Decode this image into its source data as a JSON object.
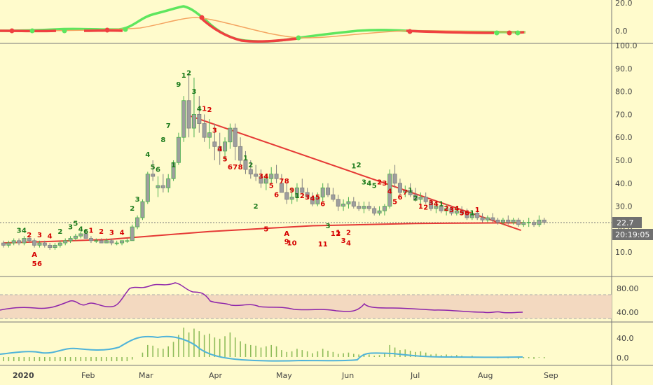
{
  "colors": {
    "background": "#fffbcc",
    "candle_up": "#4caf50",
    "candle_down": "#808080",
    "candle_body": "#9e9e9e",
    "trendline": "#e53935",
    "ma_line": "#e53935",
    "count_green": "#1b7a1b",
    "count_red": "#d50000",
    "rsi_line": "#8e24aa",
    "rsi_band": "#f3d9c0",
    "macd_line": "#4fb3d9",
    "hist": "#8fbc5a",
    "top_green": "#5ee65e",
    "top_red": "#ef4040",
    "top_orange": "#f4a460",
    "label_box": "#707070"
  },
  "price_label": {
    "value": "22.7",
    "timer": "20:19:05"
  },
  "x_labels": [
    "2020",
    "Feb",
    "Mar",
    "Apr",
    "May",
    "Jun",
    "Jul",
    "Aug",
    "Sep"
  ],
  "top_panel": {
    "ticks": [
      "20.0",
      "0.0"
    ]
  },
  "rsi_panel": {
    "ticks": [
      "80.00",
      "40.00"
    ],
    "band": [
      30,
      70
    ]
  },
  "macd_panel": {
    "ticks": [
      "40.0",
      "0.0"
    ]
  },
  "chart_data": {
    "type": "candlestick",
    "y_ticks": [
      "10.0",
      "20.0",
      "30.0",
      "40.0",
      "50.0",
      "60.0",
      "70.0",
      "80.0",
      "90.0",
      "100.0"
    ],
    "ylim": [
      0,
      100
    ],
    "last_price": 22.7,
    "candles": [
      [
        14,
        15,
        12,
        13
      ],
      [
        13,
        15,
        12,
        14
      ],
      [
        14,
        16,
        13,
        15
      ],
      [
        15,
        16,
        13,
        14
      ],
      [
        14,
        17,
        13,
        16
      ],
      [
        16,
        17,
        14,
        15
      ],
      [
        15,
        16,
        12,
        13
      ],
      [
        13,
        15,
        12,
        14
      ],
      [
        14,
        15,
        12,
        13
      ],
      [
        13,
        14,
        11,
        12
      ],
      [
        12,
        14,
        11,
        13
      ],
      [
        13,
        15,
        12,
        14
      ],
      [
        14,
        16,
        13,
        15
      ],
      [
        15,
        17,
        14,
        16
      ],
      [
        16,
        18,
        15,
        17
      ],
      [
        17,
        19,
        16,
        18
      ],
      [
        18,
        20,
        16,
        16
      ],
      [
        16,
        17,
        14,
        15
      ],
      [
        15,
        16,
        14,
        15
      ],
      [
        15,
        16,
        14,
        14
      ],
      [
        14,
        16,
        14,
        15
      ],
      [
        15,
        16,
        13,
        14
      ],
      [
        14,
        15,
        13,
        14
      ],
      [
        14,
        15,
        13,
        15
      ],
      [
        15,
        16,
        14,
        15
      ],
      [
        15,
        22,
        15,
        21
      ],
      [
        21,
        26,
        20,
        25
      ],
      [
        25,
        33,
        24,
        32
      ],
      [
        32,
        45,
        31,
        44
      ],
      [
        44,
        50,
        41,
        43
      ],
      [
        38,
        43,
        34,
        39
      ],
      [
        39,
        44,
        36,
        38
      ],
      [
        38,
        44,
        36,
        42
      ],
      [
        42,
        50,
        41,
        49
      ],
      [
        49,
        62,
        48,
        60
      ],
      [
        60,
        78,
        58,
        76
      ],
      [
        76,
        88,
        60,
        64
      ],
      [
        64,
        86,
        60,
        70
      ],
      [
        70,
        78,
        62,
        66
      ],
      [
        66,
        70,
        58,
        60
      ],
      [
        60,
        68,
        55,
        62
      ],
      [
        58,
        66,
        50,
        56
      ],
      [
        56,
        62,
        48,
        54
      ],
      [
        54,
        60,
        50,
        58
      ],
      [
        58,
        66,
        55,
        64
      ],
      [
        64,
        66,
        50,
        56
      ],
      [
        56,
        60,
        48,
        50
      ],
      [
        50,
        54,
        44,
        46
      ],
      [
        46,
        50,
        42,
        44
      ],
      [
        44,
        48,
        41,
        43
      ],
      [
        43,
        46,
        38,
        40
      ],
      [
        40,
        44,
        37,
        42
      ],
      [
        42,
        47,
        40,
        44
      ],
      [
        44,
        48,
        40,
        42
      ],
      [
        40,
        44,
        36,
        36
      ],
      [
        36,
        40,
        31,
        33
      ],
      [
        33,
        38,
        31,
        34
      ],
      [
        34,
        40,
        32,
        38
      ],
      [
        38,
        42,
        35,
        36
      ],
      [
        36,
        38,
        33,
        34
      ],
      [
        34,
        36,
        30,
        31
      ],
      [
        31,
        36,
        30,
        34
      ],
      [
        34,
        40,
        32,
        38
      ],
      [
        38,
        40,
        34,
        35
      ],
      [
        35,
        38,
        32,
        33
      ],
      [
        33,
        35,
        28,
        30
      ],
      [
        30,
        33,
        28,
        31
      ],
      [
        31,
        34,
        29,
        32
      ],
      [
        32,
        34,
        29,
        30
      ],
      [
        30,
        32,
        28,
        29
      ],
      [
        29,
        32,
        27,
        30
      ],
      [
        30,
        32,
        28,
        29
      ],
      [
        29,
        30,
        26,
        27
      ],
      [
        27,
        30,
        26,
        28
      ],
      [
        28,
        31,
        26,
        30
      ],
      [
        30,
        46,
        29,
        44
      ],
      [
        44,
        48,
        38,
        40
      ],
      [
        40,
        42,
        35,
        36
      ],
      [
        36,
        39,
        34,
        37
      ],
      [
        37,
        40,
        34,
        35
      ],
      [
        35,
        38,
        32,
        33
      ],
      [
        33,
        36,
        31,
        34
      ],
      [
        34,
        36,
        31,
        32
      ],
      [
        32,
        33,
        28,
        29
      ],
      [
        29,
        32,
        27,
        30
      ],
      [
        30,
        31,
        27,
        28
      ],
      [
        28,
        31,
        26,
        29
      ],
      [
        29,
        30,
        26,
        27
      ],
      [
        27,
        30,
        26,
        28
      ],
      [
        28,
        30,
        26,
        27
      ],
      [
        27,
        29,
        24,
        25
      ],
      [
        25,
        28,
        24,
        27
      ],
      [
        27,
        28,
        24,
        25
      ],
      [
        25,
        27,
        23,
        24
      ],
      [
        24,
        26,
        23,
        25
      ],
      [
        25,
        27,
        23,
        24
      ],
      [
        24,
        25,
        22,
        23
      ],
      [
        23,
        25,
        22,
        24
      ],
      [
        24,
        26,
        22,
        23
      ],
      [
        23,
        25,
        22,
        24
      ],
      [
        24,
        25,
        21,
        22
      ],
      [
        22,
        24,
        21,
        23
      ],
      [
        23,
        25,
        21,
        23
      ],
      [
        23,
        24,
        21,
        22
      ],
      [
        22,
        26,
        21,
        24
      ],
      [
        24,
        25,
        22,
        23
      ]
    ],
    "trendline": [
      [
        36,
        69.5
      ],
      [
        100.5,
        19.5
      ]
    ],
    "ma_curve": [
      [
        0,
        14
      ],
      [
        20,
        15.5
      ],
      [
        40,
        19
      ],
      [
        60,
        21.5
      ],
      [
        80,
        22.5
      ],
      [
        101,
        22.8
      ]
    ],
    "counts": [
      {
        "i": 3,
        "t": "3",
        "c": "g",
        "y": 18.5
      },
      {
        "i": 4,
        "t": "4",
        "c": "g",
        "y": 18.5
      },
      {
        "i": 5,
        "t": "2",
        "c": "r",
        "y": 16.5
      },
      {
        "i": 7,
        "t": "3",
        "c": "r",
        "y": 16.5
      },
      {
        "i": 9,
        "t": "4",
        "c": "r",
        "y": 16
      },
      {
        "i": 11,
        "t": "2",
        "c": "g",
        "y": 18
      },
      {
        "i": 13,
        "t": "3",
        "c": "g",
        "y": 20
      },
      {
        "i": 14,
        "t": "5",
        "c": "g",
        "y": 21.5
      },
      {
        "i": 15,
        "t": "4",
        "c": "g",
        "y": 19
      },
      {
        "i": 16,
        "t": "6",
        "c": "g",
        "y": 18
      },
      {
        "i": 17,
        "t": "1",
        "c": "r",
        "y": 18.5
      },
      {
        "i": 19,
        "t": "2",
        "c": "r",
        "y": 18
      },
      {
        "i": 21,
        "t": "3",
        "c": "r",
        "y": 17.5
      },
      {
        "i": 23,
        "t": "4",
        "c": "r",
        "y": 17.5
      },
      {
        "i": 25,
        "t": "2",
        "c": "g",
        "y": 28
      },
      {
        "i": 26,
        "t": "3",
        "c": "g",
        "y": 32
      },
      {
        "i": 28,
        "t": "4",
        "c": "g",
        "y": 51.5
      },
      {
        "i": 29,
        "t": "5",
        "c": "g",
        "y": 46
      },
      {
        "i": 30,
        "t": "6",
        "c": "g",
        "y": 45
      },
      {
        "i": 31,
        "t": "8",
        "c": "g",
        "y": 58
      },
      {
        "i": 32,
        "t": "7",
        "c": "g",
        "y": 64
      },
      {
        "i": 33,
        "t": "1",
        "c": "g",
        "y": 47
      },
      {
        "i": 34,
        "t": "9",
        "c": "g",
        "y": 82
      },
      {
        "i": 35,
        "t": "1",
        "c": "g",
        "y": 86
      },
      {
        "i": 36,
        "t": "2",
        "c": "g",
        "y": 87
      },
      {
        "i": 37,
        "t": "3",
        "c": "g",
        "y": 79
      },
      {
        "i": 38,
        "t": "4",
        "c": "g",
        "y": 71.5
      },
      {
        "i": 39,
        "t": "1",
        "c": "r",
        "y": 71.5
      },
      {
        "i": 40,
        "t": "2",
        "c": "r",
        "y": 71
      },
      {
        "i": 41,
        "t": "3",
        "c": "r",
        "y": 62
      },
      {
        "i": 42,
        "t": "4",
        "c": "r",
        "y": 54
      },
      {
        "i": 43,
        "t": "5",
        "c": "r",
        "y": 49.5
      },
      {
        "i": 44,
        "t": "6",
        "c": "r",
        "y": 46
      },
      {
        "i": 45,
        "t": "7",
        "c": "r",
        "y": 46
      },
      {
        "i": 46,
        "t": "8",
        "c": "r",
        "y": 46
      },
      {
        "i": 47,
        "t": "1",
        "c": "g",
        "y": 50
      },
      {
        "i": 48,
        "t": "2",
        "c": "g",
        "y": 47
      },
      {
        "i": 49,
        "t": "2",
        "c": "g",
        "y": 29
      },
      {
        "i": 50,
        "t": "3",
        "c": "r",
        "y": 42
      },
      {
        "i": 51,
        "t": "4",
        "c": "r",
        "y": 42
      },
      {
        "i": 52,
        "t": "5",
        "c": "r",
        "y": 38
      },
      {
        "i": 53,
        "t": "6",
        "c": "r",
        "y": 34
      },
      {
        "i": 54,
        "t": "7",
        "c": "r",
        "y": 40
      },
      {
        "i": 55,
        "t": "8",
        "c": "r",
        "y": 40
      },
      {
        "i": 56,
        "t": "9",
        "c": "r",
        "y": 36
      },
      {
        "i": 57,
        "t": "1",
        "c": "g",
        "y": 33.5
      },
      {
        "i": 58,
        "t": "2",
        "c": "r",
        "y": 33.5
      },
      {
        "i": 59,
        "t": "3",
        "c": "r",
        "y": 33
      },
      {
        "i": 60,
        "t": "4",
        "c": "r",
        "y": 32.5
      },
      {
        "i": 61,
        "t": "5",
        "c": "r",
        "y": 33
      },
      {
        "i": 62,
        "t": "6",
        "c": "r",
        "y": 30
      },
      {
        "i": 63,
        "t": "3",
        "c": "g",
        "y": 20.5
      },
      {
        "i": 64,
        "t": "1",
        "c": "r",
        "y": 17
      },
      {
        "i": 65,
        "t": "2",
        "c": "r",
        "y": 17
      },
      {
        "i": 66,
        "t": "3",
        "c": "r",
        "y": 14
      },
      {
        "i": 67,
        "t": "4",
        "c": "r",
        "y": 13
      },
      {
        "i": 68,
        "t": "1",
        "c": "g",
        "y": 46.5
      },
      {
        "i": 69,
        "t": "2",
        "c": "g",
        "y": 47
      },
      {
        "i": 70,
        "t": "3",
        "c": "g",
        "y": 39.5
      },
      {
        "i": 71,
        "t": "4",
        "c": "g",
        "y": 39
      },
      {
        "i": 72,
        "t": "5",
        "c": "g",
        "y": 38
      },
      {
        "i": 73,
        "t": "2",
        "c": "r",
        "y": 39.5
      },
      {
        "i": 74,
        "t": "3",
        "c": "r",
        "y": 39
      },
      {
        "i": 75,
        "t": "4",
        "c": "r",
        "y": 35.5
      },
      {
        "i": 76,
        "t": "5",
        "c": "r",
        "y": 31
      },
      {
        "i": 77,
        "t": "6",
        "c": "r",
        "y": 33
      },
      {
        "i": 78,
        "t": "7",
        "c": "r",
        "y": 35
      },
      {
        "i": 79,
        "t": "1",
        "c": "g",
        "y": 36
      },
      {
        "i": 80,
        "t": "2",
        "c": "g",
        "y": 32.5
      },
      {
        "i": 81,
        "t": "1",
        "c": "r",
        "y": 29
      },
      {
        "i": 82,
        "t": "2",
        "c": "r",
        "y": 28.5
      },
      {
        "i": 83,
        "t": "3",
        "c": "r",
        "y": 30.5
      },
      {
        "i": 84,
        "t": "4",
        "c": "r",
        "y": 30
      },
      {
        "i": 85,
        "t": "1",
        "c": "g",
        "y": 30
      },
      {
        "i": 86,
        "t": "2",
        "c": "r",
        "y": 28
      },
      {
        "i": 87,
        "t": "3",
        "c": "r",
        "y": 27.5
      },
      {
        "i": 88,
        "t": "4",
        "c": "r",
        "y": 28
      },
      {
        "i": 89,
        "t": "5",
        "c": "r",
        "y": 26
      },
      {
        "i": 90,
        "t": "6",
        "c": "r",
        "y": 26
      },
      {
        "i": 91,
        "t": "1",
        "c": "g",
        "y": 26
      },
      {
        "i": 92,
        "t": "1",
        "c": "r",
        "y": 27.5
      },
      {
        "i": 65,
        "t": "1",
        "c": "r",
        "y": 17.5
      },
      {
        "i": 67,
        "t": "2",
        "c": "r",
        "y": 17.5
      },
      {
        "i": 6,
        "t": "A",
        "c": "r",
        "y": 8
      },
      {
        "i": 6,
        "t": "5",
        "c": "r",
        "y": 4
      },
      {
        "i": 7,
        "t": "6",
        "c": "r",
        "y": 4
      },
      {
        "i": 55,
        "t": "A",
        "c": "r",
        "y": 17
      },
      {
        "i": 55,
        "t": "9",
        "c": "r",
        "y": 13.5
      },
      {
        "i": 56,
        "t": "10",
        "c": "r",
        "y": 13
      },
      {
        "i": 62,
        "t": "11",
        "c": "r",
        "y": 12.5
      },
      {
        "i": 51,
        "t": "5",
        "c": "r",
        "y": 19
      }
    ]
  }
}
